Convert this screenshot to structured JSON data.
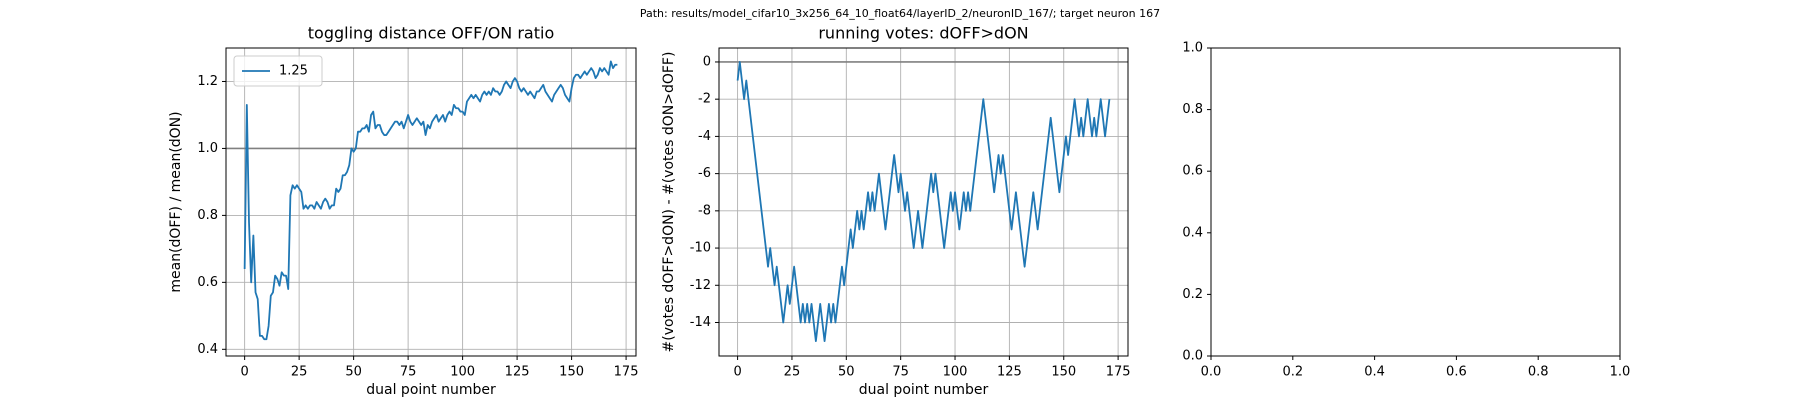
{
  "title": "Path: results/model_cifar10_3x256_64_10_float64/layerID_2/neuronID_167/; target neuron 167",
  "chart_data": [
    {
      "type": "line",
      "title": "toggling distance OFF/ON ratio",
      "xlabel": "dual point number",
      "ylabel": "mean(dOFF) / mean(dON)",
      "xlim": [
        -8.55,
        179.55
      ],
      "ylim": [
        0.38,
        1.3
      ],
      "xticks": [
        0,
        25,
        50,
        75,
        100,
        125,
        150,
        175
      ],
      "yticks": [
        0.4,
        0.6,
        0.8,
        {
          "value": 1,
          "label": "1.0"
        },
        1.2
      ],
      "grid": true,
      "legend": "upper left",
      "hline": 1,
      "hline_color": "#808080",
      "x": [
        0,
        1,
        2,
        3,
        4,
        5,
        6,
        7,
        8,
        9,
        10,
        11,
        12,
        13,
        14,
        15,
        16,
        17,
        18,
        19,
        20,
        21,
        22,
        23,
        24,
        25,
        26,
        27,
        28,
        29,
        30,
        31,
        32,
        33,
        34,
        35,
        36,
        37,
        38,
        39,
        40,
        41,
        42,
        43,
        44,
        45,
        46,
        47,
        48,
        49,
        50,
        51,
        52,
        53,
        54,
        55,
        56,
        57,
        58,
        59,
        60,
        61,
        62,
        63,
        64,
        65,
        66,
        67,
        68,
        69,
        70,
        71,
        72,
        73,
        74,
        75,
        76,
        77,
        78,
        79,
        80,
        81,
        82,
        83,
        84,
        85,
        86,
        87,
        88,
        89,
        90,
        91,
        92,
        93,
        94,
        95,
        96,
        97,
        98,
        99,
        100,
        101,
        102,
        103,
        104,
        105,
        106,
        107,
        108,
        109,
        110,
        111,
        112,
        113,
        114,
        115,
        116,
        117,
        118,
        119,
        120,
        121,
        122,
        123,
        124,
        125,
        126,
        127,
        128,
        129,
        130,
        131,
        132,
        133,
        134,
        135,
        136,
        137,
        138,
        139,
        140,
        141,
        142,
        143,
        144,
        145,
        146,
        147,
        148,
        149,
        150,
        151,
        152,
        153,
        154,
        155,
        156,
        157,
        158,
        159,
        160,
        161,
        162,
        163,
        164,
        165,
        166,
        167,
        168,
        169,
        170,
        171
      ],
      "series": [
        {
          "name": "1.25",
          "color": "#1f77b4",
          "values": [
            0.64,
            1.13,
            0.78,
            0.6,
            0.74,
            0.57,
            0.55,
            0.44,
            0.44,
            0.43,
            0.43,
            0.47,
            0.56,
            0.57,
            0.62,
            0.61,
            0.59,
            0.63,
            0.62,
            0.62,
            0.58,
            0.86,
            0.89,
            0.88,
            0.89,
            0.88,
            0.87,
            0.82,
            0.83,
            0.82,
            0.83,
            0.83,
            0.82,
            0.84,
            0.83,
            0.82,
            0.84,
            0.85,
            0.84,
            0.82,
            0.83,
            0.83,
            0.88,
            0.87,
            0.88,
            0.92,
            0.92,
            0.93,
            0.95,
            1.0,
            0.99,
            1.0,
            1.05,
            1.05,
            1.06,
            1.06,
            1.07,
            1.05,
            1.1,
            1.11,
            1.06,
            1.07,
            1.07,
            1.05,
            1.04,
            1.04,
            1.05,
            1.06,
            1.07,
            1.08,
            1.08,
            1.07,
            1.08,
            1.06,
            1.08,
            1.1,
            1.08,
            1.07,
            1.08,
            1.09,
            1.08,
            1.07,
            1.08,
            1.04,
            1.07,
            1.06,
            1.08,
            1.09,
            1.1,
            1.08,
            1.09,
            1.1,
            1.08,
            1.1,
            1.11,
            1.1,
            1.13,
            1.12,
            1.12,
            1.11,
            1.11,
            1.1,
            1.14,
            1.15,
            1.16,
            1.15,
            1.16,
            1.15,
            1.14,
            1.16,
            1.17,
            1.16,
            1.17,
            1.16,
            1.18,
            1.17,
            1.17,
            1.16,
            1.17,
            1.19,
            1.2,
            1.19,
            1.18,
            1.2,
            1.21,
            1.2,
            1.18,
            1.17,
            1.18,
            1.17,
            1.16,
            1.17,
            1.16,
            1.15,
            1.17,
            1.17,
            1.18,
            1.19,
            1.17,
            1.16,
            1.15,
            1.14,
            1.16,
            1.17,
            1.18,
            1.19,
            1.18,
            1.16,
            1.15,
            1.14,
            1.18,
            1.21,
            1.22,
            1.22,
            1.21,
            1.22,
            1.23,
            1.22,
            1.23,
            1.24,
            1.23,
            1.21,
            1.22,
            1.24,
            1.23,
            1.24,
            1.23,
            1.22,
            1.26,
            1.24,
            1.25,
            1.25
          ]
        }
      ]
    },
    {
      "type": "line",
      "title": "running votes: dOFF>dON",
      "xlabel": "dual point number",
      "ylabel": "#(votes dOFF>dON) - #(votes dON>dOFF)",
      "xlim": [
        -8.55,
        179.55
      ],
      "ylim": [
        -15.8,
        0.75
      ],
      "xticks": [
        0,
        25,
        50,
        75,
        100,
        125,
        150,
        175
      ],
      "yticks": [
        -14,
        -12,
        -10,
        -8,
        -6,
        -4,
        -2,
        0
      ],
      "grid": true,
      "hline": 0,
      "hline_color": "#808080",
      "x": [
        0,
        1,
        2,
        3,
        4,
        5,
        6,
        7,
        8,
        9,
        10,
        11,
        12,
        13,
        14,
        15,
        16,
        17,
        18,
        19,
        20,
        21,
        22,
        23,
        24,
        25,
        26,
        27,
        28,
        29,
        30,
        31,
        32,
        33,
        34,
        35,
        36,
        37,
        38,
        39,
        40,
        41,
        42,
        43,
        44,
        45,
        46,
        47,
        48,
        49,
        50,
        51,
        52,
        53,
        54,
        55,
        56,
        57,
        58,
        59,
        60,
        61,
        62,
        63,
        64,
        65,
        66,
        67,
        68,
        69,
        70,
        71,
        72,
        73,
        74,
        75,
        76,
        77,
        78,
        79,
        80,
        81,
        82,
        83,
        84,
        85,
        86,
        87,
        88,
        89,
        90,
        91,
        92,
        93,
        94,
        95,
        96,
        97,
        98,
        99,
        100,
        101,
        102,
        103,
        104,
        105,
        106,
        107,
        108,
        109,
        110,
        111,
        112,
        113,
        114,
        115,
        116,
        117,
        118,
        119,
        120,
        121,
        122,
        123,
        124,
        125,
        126,
        127,
        128,
        129,
        130,
        131,
        132,
        133,
        134,
        135,
        136,
        137,
        138,
        139,
        140,
        141,
        142,
        143,
        144,
        145,
        146,
        147,
        148,
        149,
        150,
        151,
        152,
        153,
        154,
        155,
        156,
        157,
        158,
        159,
        160,
        161,
        162,
        163,
        164,
        165,
        166,
        167,
        168,
        169,
        170,
        171
      ],
      "series": [
        {
          "color": "#1f77b4",
          "values": [
            -1,
            0,
            -1,
            -2,
            -1,
            -2,
            -3,
            -4,
            -5,
            -6,
            -7,
            -8,
            -9,
            -10,
            -11,
            -10,
            -11,
            -12,
            -11,
            -12,
            -13,
            -14,
            -13,
            -12,
            -13,
            -12,
            -11,
            -12,
            -13,
            -14,
            -13,
            -14,
            -13,
            -14,
            -13,
            -14,
            -15,
            -14,
            -13,
            -14,
            -15,
            -14,
            -13,
            -14,
            -13,
            -14,
            -13,
            -12,
            -11,
            -12,
            -11,
            -10,
            -9,
            -10,
            -9,
            -8,
            -9,
            -8,
            -9,
            -8,
            -7,
            -8,
            -7,
            -8,
            -7,
            -6,
            -7,
            -8,
            -9,
            -8,
            -7,
            -6,
            -5,
            -6,
            -7,
            -6,
            -7,
            -8,
            -7,
            -8,
            -9,
            -10,
            -9,
            -8,
            -9,
            -10,
            -9,
            -8,
            -7,
            -6,
            -7,
            -6,
            -7,
            -8,
            -9,
            -10,
            -9,
            -8,
            -7,
            -8,
            -7,
            -8,
            -9,
            -8,
            -7,
            -8,
            -7,
            -8,
            -7,
            -6,
            -5,
            -4,
            -3,
            -2,
            -3,
            -4,
            -5,
            -6,
            -7,
            -6,
            -5,
            -6,
            -5,
            -6,
            -7,
            -8,
            -9,
            -8,
            -7,
            -8,
            -9,
            -10,
            -11,
            -10,
            -9,
            -8,
            -7,
            -8,
            -9,
            -8,
            -7,
            -6,
            -5,
            -4,
            -3,
            -4,
            -5,
            -6,
            -7,
            -6,
            -5,
            -4,
            -5,
            -4,
            -3,
            -2,
            -3,
            -4,
            -3,
            -4,
            -3,
            -2,
            -3,
            -4,
            -3,
            -4,
            -3,
            -2,
            -3,
            -4,
            -3,
            -2
          ]
        }
      ]
    },
    {
      "type": "line",
      "xlim": [
        0,
        1
      ],
      "ylim": [
        0,
        1
      ],
      "xticks": [
        {
          "value": 0,
          "label": "0.0"
        },
        0.2,
        0.4,
        0.6,
        0.8,
        {
          "value": 1,
          "label": "1.0"
        }
      ],
      "yticks": [
        {
          "value": 0,
          "label": "0.0"
        },
        0.2,
        0.4,
        0.6,
        0.8,
        {
          "value": 1,
          "label": "1.0"
        }
      ],
      "grid": false
    }
  ]
}
